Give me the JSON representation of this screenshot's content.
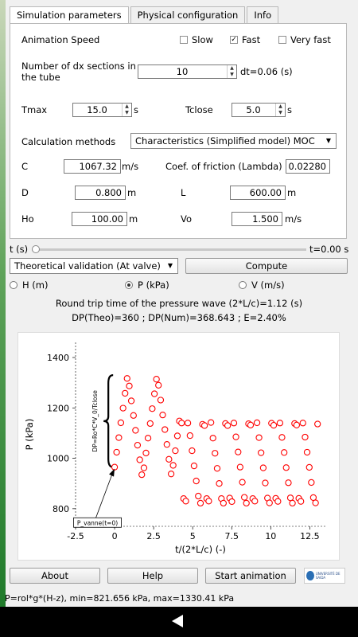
{
  "tabs": {
    "sim": "Simulation parameters",
    "phys": "Physical configuration",
    "info": "Info"
  },
  "animation": {
    "label": "Animation Speed",
    "slow": "Slow",
    "fast": "Fast",
    "very_fast": "Very fast",
    "checked": "Fast"
  },
  "dx": {
    "label_1": "Number of dx sections in",
    "label_2": "the tube",
    "value": "10",
    "dt": "dt=0.06 (s)"
  },
  "tmax": {
    "label": "Tmax",
    "value": "15.0",
    "unit": "s"
  },
  "tclose": {
    "label": "Tclose",
    "value": "5.0",
    "unit": "s"
  },
  "calc": {
    "label": "Calculation methods",
    "value": "Characteristics (Simplified model) MOC"
  },
  "c": {
    "label": "C",
    "value": "1067.32",
    "unit": "m/s"
  },
  "friction": {
    "label": "Coef. of friction (Lambda)",
    "value": "0.02280"
  },
  "d": {
    "label": "D",
    "value": "0.800",
    "unit": "m"
  },
  "l": {
    "label": "L",
    "value": "600.00",
    "unit": "m"
  },
  "ho": {
    "label": "Ho",
    "value": "100.00",
    "unit": "m"
  },
  "vo": {
    "label": "Vo",
    "value": "1.500",
    "unit": "m/s"
  },
  "time": {
    "label": "t (s)",
    "readout": "t=0.00 s",
    "progress": 0
  },
  "validation": {
    "value": "Theoretical validation (At valve)"
  },
  "compute_label": "Compute",
  "radios": {
    "h": "H (m)",
    "p": "P (kPa)",
    "v": "V (m/s)",
    "selected": "P (kPa)"
  },
  "info_line1": "Round trip time of the pressure wave (2*L/c)=1.12 (s)",
  "info_line2": "DP(Theo)=360 ; DP(Num)=368.643 ; E=2.40%",
  "buttons": {
    "about": "About",
    "help": "Help",
    "start": "Start animation"
  },
  "logo_text": "UNIVERSITÉ DE SAIDA",
  "footer": "P=rol*g*(H-z), min=821.656 kPa, max=1330.41 kPa",
  "colors": {
    "series": "#ff0000",
    "axis": "#000000"
  },
  "chart_data": {
    "type": "scatter",
    "xlabel": "t/(2*L/c) (-)",
    "ylabel": "P (kPa)",
    "xlim": [
      -2.5,
      13.5
    ],
    "ylim": [
      730,
      1460
    ],
    "xticks": [
      "-2.5",
      "0",
      "2.5",
      "5",
      "7.5",
      "10",
      "12.5"
    ],
    "yticks": [
      "800",
      "1000",
      "1200",
      "1400"
    ],
    "annotation_brace": "DP=Ro*C*V_0/Tclose",
    "annotation_arrow": "P_vanne(t=0)",
    "series": [
      {
        "x": [
          0,
          0.13,
          0.27,
          0.4,
          0.54,
          0.67,
          0.8,
          0.94,
          1.07,
          1.21,
          1.34,
          1.47,
          1.61,
          1.74,
          1.88,
          2.01,
          2.14,
          2.28,
          2.41,
          2.55,
          2.68,
          2.81,
          2.95,
          3.08,
          3.22,
          3.35,
          3.48,
          3.62,
          3.75,
          3.89,
          4.02,
          4.15,
          4.29,
          4.42,
          4.56,
          4.69,
          4.83,
          4.96,
          5.09,
          5.23,
          5.36,
          5.5,
          5.63,
          5.76,
          5.9,
          6.03,
          6.17,
          6.3,
          6.43,
          6.57,
          6.7,
          6.84,
          6.97,
          7.1,
          7.24,
          7.37,
          7.51,
          7.64,
          7.77,
          7.91,
          8.04,
          8.18,
          8.31,
          8.44,
          8.58,
          8.71,
          8.85,
          8.98,
          9.12,
          9.25,
          9.38,
          9.52,
          9.65,
          9.79,
          9.92,
          10.05,
          10.19,
          10.32,
          10.46,
          10.59,
          10.72,
          10.86,
          10.99,
          11.13,
          11.26,
          11.39,
          11.53,
          11.66,
          11.8,
          11.93,
          12.06,
          12.2,
          12.33,
          12.47,
          12.6,
          12.73,
          12.87,
          13
        ],
        "y": [
          965,
          1024,
          1082,
          1141,
          1199,
          1258,
          1317,
          1287,
          1228,
          1170,
          1111,
          1052,
          994,
          935,
          962,
          1021,
          1080,
          1138,
          1197,
          1256,
          1314,
          1290,
          1231,
          1172,
          1114,
          1055,
          996,
          938,
          972,
          1030,
          1089,
          1148,
          1140,
          840,
          830,
          1140,
          1090,
          1030,
          970,
          910,
          850,
          822,
          1135,
          1130,
          840,
          830,
          1142,
          1080,
          1020,
          960,
          900,
          840,
          822,
          1138,
          1130,
          842,
          828,
          1140,
          1085,
          1025,
          965,
          905,
          845,
          822,
          1137,
          1132,
          840,
          830,
          1141,
          1082,
          1022,
          962,
          902,
          842,
          823,
          1139,
          1131,
          841,
          829,
          1140,
          1083,
          1023,
          963,
          903,
          843,
          822,
          1138,
          1132,
          841,
          829,
          1140,
          1084,
          1024,
          964,
          904,
          844,
          823,
          1136
        ]
      }
    ]
  }
}
